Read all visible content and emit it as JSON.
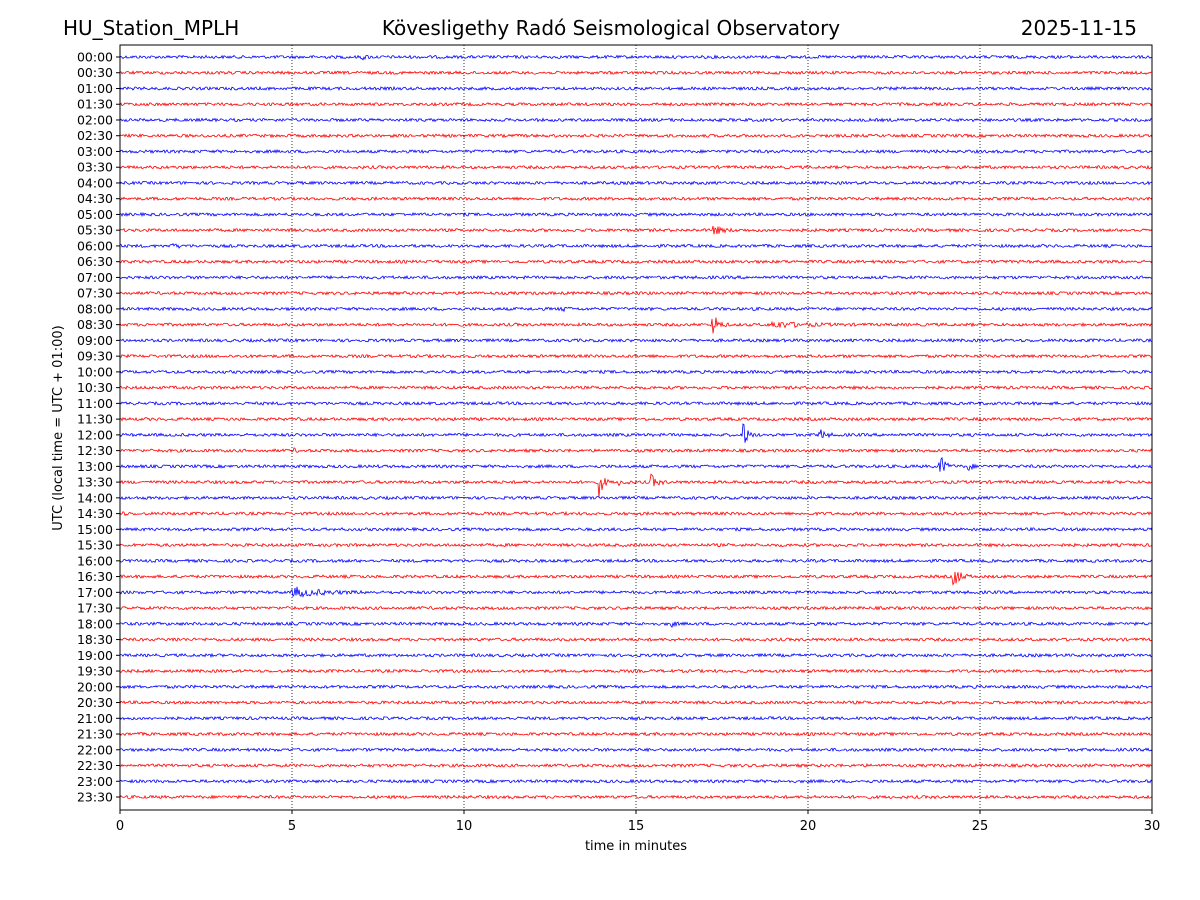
{
  "header": {
    "station": "HU_Station_MPLH",
    "title": "Kövesligethy Radó Seismological Observatory",
    "date": "2025-11-15"
  },
  "chart_data": {
    "type": "line",
    "title": "Kövesligethy Radó Seismological Observatory",
    "xlabel": "time in minutes",
    "ylabel": "UTC (local time = UTC + 01:00)",
    "xlim": [
      0,
      30
    ],
    "x_ticks": [
      "0",
      "5",
      "10",
      "15",
      "20",
      "25",
      "30"
    ],
    "x_tick_values": [
      0,
      5,
      10,
      15,
      20,
      25,
      30
    ],
    "grid": "vertical dotted at x ticks",
    "row_labels": [
      "00:00",
      "00:30",
      "01:00",
      "01:30",
      "02:00",
      "02:30",
      "03:00",
      "03:30",
      "04:00",
      "04:30",
      "05:00",
      "05:30",
      "06:00",
      "06:30",
      "07:00",
      "07:30",
      "08:00",
      "08:30",
      "09:00",
      "09:30",
      "10:00",
      "10:30",
      "11:00",
      "11:30",
      "12:00",
      "12:30",
      "13:00",
      "13:30",
      "14:00",
      "14:30",
      "15:00",
      "15:30",
      "16:00",
      "16:30",
      "17:00",
      "17:30",
      "18:00",
      "18:30",
      "19:00",
      "19:30",
      "20:00",
      "20:30",
      "21:00",
      "21:30",
      "22:00",
      "22:30",
      "23:00",
      "23:30"
    ],
    "colors": [
      "#0000ff",
      "#ff0000"
    ],
    "noise_amplitude": 1,
    "events": [
      {
        "row": 0,
        "start": 7.0,
        "duration": 0.6,
        "amplitude": 1.6
      },
      {
        "row": 11,
        "start": 17.2,
        "duration": 0.8,
        "amplitude": 4
      },
      {
        "row": 12,
        "start": 1.5,
        "duration": 0.6,
        "amplitude": 1.6
      },
      {
        "row": 16,
        "start": 12.8,
        "duration": 0.5,
        "amplitude": 2
      },
      {
        "row": 17,
        "start": 17.2,
        "duration": 0.5,
        "amplitude": 12
      },
      {
        "row": 17,
        "start": 18.9,
        "duration": 2.5,
        "amplitude": 2.5
      },
      {
        "row": 24,
        "start": 18.1,
        "duration": 0.4,
        "amplitude": 12
      },
      {
        "row": 24,
        "start": 20.3,
        "duration": 0.5,
        "amplitude": 6
      },
      {
        "row": 25,
        "start": 5.0,
        "duration": 0.3,
        "amplitude": 2
      },
      {
        "row": 26,
        "start": 23.8,
        "duration": 0.5,
        "amplitude": 11
      },
      {
        "row": 26,
        "start": 24.6,
        "duration": 0.4,
        "amplitude": 5
      },
      {
        "row": 27,
        "start": 13.9,
        "duration": 0.4,
        "amplitude": 14
      },
      {
        "row": 27,
        "start": 14.5,
        "duration": 0.5,
        "amplitude": 3
      },
      {
        "row": 27,
        "start": 15.4,
        "duration": 0.6,
        "amplitude": 6
      },
      {
        "row": 29,
        "start": 0,
        "duration": 0.4,
        "amplitude": 1.6
      },
      {
        "row": 33,
        "start": 24.2,
        "duration": 0.6,
        "amplitude": 10
      },
      {
        "row": 34,
        "start": 5.0,
        "duration": 2.5,
        "amplitude": 3.5
      },
      {
        "row": 36,
        "start": 16.0,
        "duration": 0.4,
        "amplitude": 2
      },
      {
        "row": 37,
        "start": 1.5,
        "duration": 0.4,
        "amplitude": 1.6
      }
    ]
  }
}
